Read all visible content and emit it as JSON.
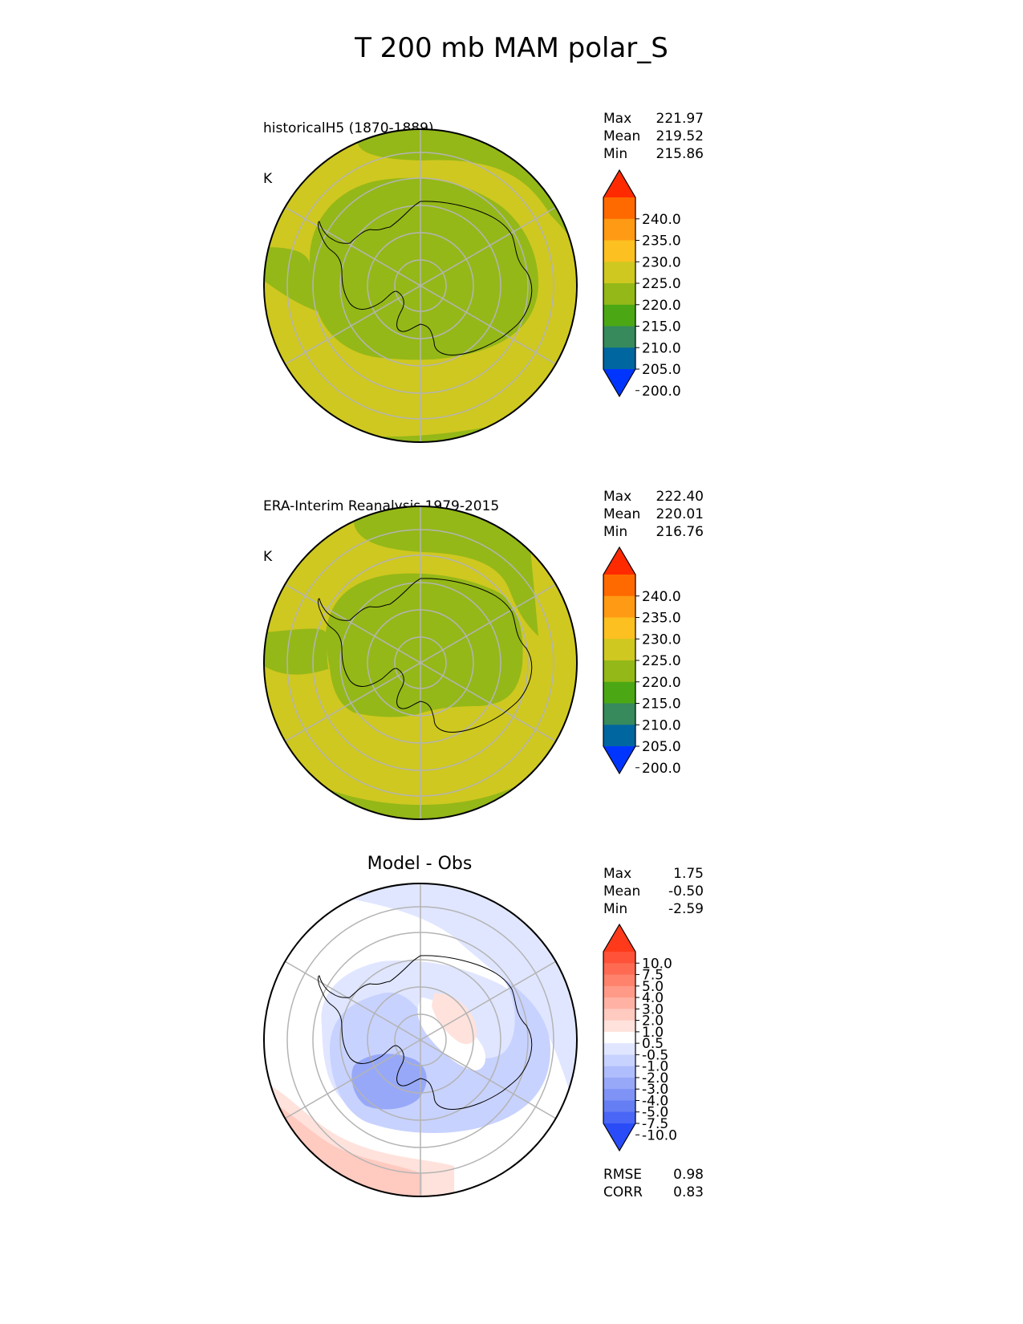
{
  "title": "T 200 mb MAM polar_S",
  "panels": [
    {
      "title_line1": "historicalH5 (1870-1889)",
      "title_line2": "K",
      "stats": [
        {
          "label": "Max",
          "value": "221.97"
        },
        {
          "label": "Mean",
          "value": "219.52"
        },
        {
          "label": "Min",
          "value": "215.86"
        }
      ],
      "colorbar": {
        "labels": [
          "240.0",
          "235.0",
          "230.0",
          "225.0",
          "220.0",
          "215.0",
          "210.0",
          "205.0",
          "200.0"
        ],
        "colors": [
          "#ff2a00",
          "#ff6a00",
          "#ff9a14",
          "#fcc021",
          "#cfc820",
          "#94b818",
          "#4ba814",
          "#368a5c",
          "#0066a0",
          "#0035ff"
        ]
      }
    },
    {
      "title_line1": "ERA-Interim Reanalysis 1979-2015",
      "title_line2": "K",
      "stats": [
        {
          "label": "Max",
          "value": "222.40"
        },
        {
          "label": "Mean",
          "value": "220.01"
        },
        {
          "label": "Min",
          "value": "216.76"
        }
      ],
      "colorbar": {
        "labels": [
          "240.0",
          "235.0",
          "230.0",
          "225.0",
          "220.0",
          "215.0",
          "210.0",
          "205.0",
          "200.0"
        ],
        "colors": [
          "#ff2a00",
          "#ff6a00",
          "#ff9a14",
          "#fcc021",
          "#cfc820",
          "#94b818",
          "#4ba814",
          "#368a5c",
          "#0066a0",
          "#0035ff"
        ]
      }
    },
    {
      "title_line1": "Model - Obs",
      "stats": [
        {
          "label": "Max",
          "value": "1.75"
        },
        {
          "label": "Mean",
          "value": "-0.50"
        },
        {
          "label": "Min",
          "value": "-2.59"
        }
      ],
      "colorbar": {
        "labels": [
          "10.0",
          "7.5",
          "5.0",
          "4.0",
          "3.0",
          "2.0",
          "1.0",
          "0.5",
          "-0.5",
          "-1.0",
          "-2.0",
          "-3.0",
          "-4.0",
          "-5.0",
          "-7.5",
          "-10.0"
        ],
        "colors": [
          "#ff3a1a",
          "#ff5238",
          "#ff6a52",
          "#ff826c",
          "#ff9a88",
          "#ffb2a4",
          "#ffcac0",
          "#ffe2dc",
          "#ffffff",
          "#e0e6ff",
          "#c8d2ff",
          "#b0bdfc",
          "#97a8f8",
          "#7e93f5",
          "#657ef4",
          "#4a66f6",
          "#2a4cf8"
        ]
      },
      "metrics": [
        {
          "label": "RMSE",
          "value": "0.98"
        },
        {
          "label": "CORR",
          "value": "0.83"
        }
      ]
    }
  ],
  "map_colors": {
    "green": "#94b818",
    "yellow": "#cfc820",
    "white": "#ffffff",
    "blue_light": "#e0e6ff",
    "blue_mid": "#c8d2ff",
    "blue_dark": "#97a8f8",
    "red_light": "#ffe2dc",
    "red_mid": "#ffcac0"
  }
}
